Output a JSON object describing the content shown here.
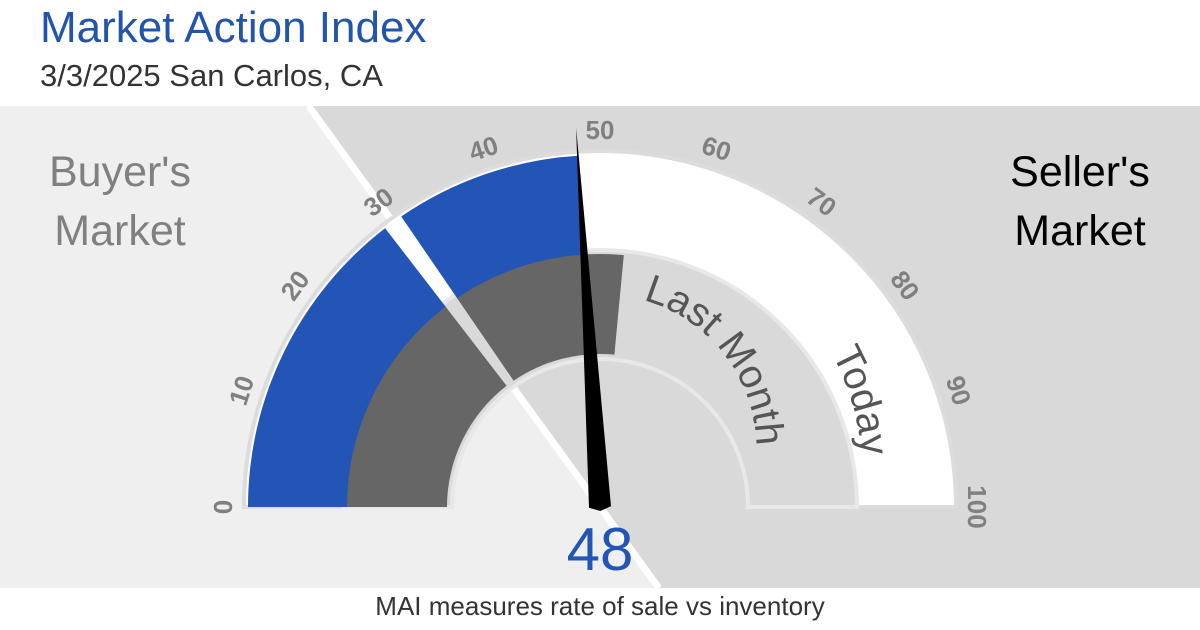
{
  "header": {
    "title": "Market Action Index",
    "subtitle": "3/3/2025 San Carlos, CA"
  },
  "labels": {
    "buyer_line1": "Buyer's",
    "buyer_line2": "Market",
    "seller_line1": "Seller's",
    "seller_line2": "Market",
    "last_month": "Last Month",
    "today": "Today",
    "value_text": "48"
  },
  "footnote": "MAI measures rate of sale vs inventory",
  "colors": {
    "accent": "#2255b5",
    "last_month": "#666666",
    "buyer_bg": "#efefef",
    "seller_bg": "#d9d9d9",
    "needle": "#000000"
  },
  "chart_data": {
    "type": "gauge",
    "min": 0,
    "max": 100,
    "threshold": 30,
    "ticks": [
      0,
      10,
      20,
      30,
      40,
      50,
      60,
      70,
      80,
      90,
      100
    ],
    "series": [
      {
        "name": "Today",
        "value": 48
      },
      {
        "name": "Last Month",
        "value": 53
      }
    ],
    "needle_value": 48
  }
}
